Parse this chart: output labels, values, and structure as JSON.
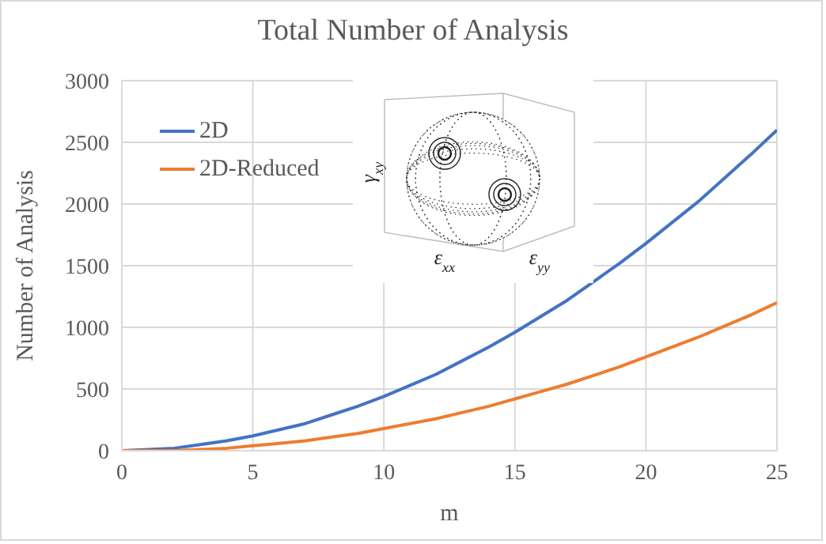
{
  "chart_data": {
    "type": "line",
    "title": "Total Number of Analysis",
    "xlabel": "m",
    "ylabel": "Number of Analysis",
    "x": [
      0,
      1,
      2,
      3,
      4,
      5,
      6,
      7,
      8,
      9,
      10,
      11,
      12,
      13,
      14,
      15,
      16,
      17,
      18,
      19,
      20,
      21,
      22,
      23,
      24,
      25
    ],
    "series": [
      {
        "name": "2D",
        "color": "#4472c4",
        "values": [
          0,
          10,
          20,
          50,
          80,
          120,
          170,
          220,
          290,
          360,
          440,
          530,
          620,
          730,
          840,
          960,
          1090,
          1220,
          1370,
          1520,
          1680,
          1850,
          2020,
          2210,
          2400,
          2600
        ]
      },
      {
        "name": "2D-Reduced",
        "color": "#ed7d31",
        "values": [
          0,
          0,
          0,
          10,
          20,
          40,
          60,
          80,
          110,
          140,
          180,
          220,
          260,
          310,
          360,
          420,
          480,
          540,
          610,
          680,
          760,
          840,
          920,
          1010,
          1100,
          1200
        ]
      }
    ],
    "xlim": [
      0,
      25
    ],
    "xticks": [
      0,
      5,
      10,
      15,
      20,
      25
    ],
    "ylim": [
      0,
      3000
    ],
    "yticks": [
      0,
      500,
      1000,
      1500,
      2000,
      2500,
      3000
    ],
    "grid": true,
    "legend": "top left",
    "marker": "none",
    "line_style": "solid",
    "annotations": [
      "ε$_{xx}$",
      "ε$_{yy}$",
      "γ$_{xy}$"
    ]
  }
}
